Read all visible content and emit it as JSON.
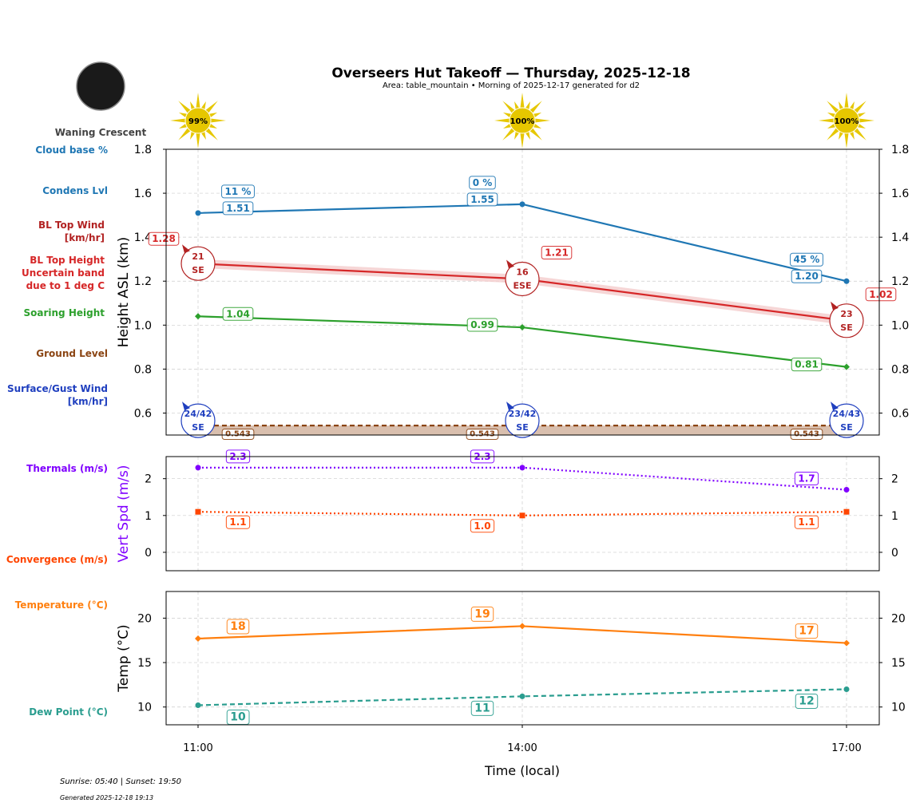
{
  "chart_data": {
    "type": "line",
    "title": "Overseers Hut Takeoff — Thursday, 2025-12-18",
    "subtitle": "Area: table_mountain • Morning of 2025-12-17 generated for d2",
    "moon_phase": "Waning Crescent",
    "x": [
      "11:00",
      "14:00",
      "17:00"
    ],
    "xlabel": "Time (local)",
    "sun_percent": [
      "99%",
      "100%",
      "100%"
    ],
    "grid": true,
    "panels": [
      {
        "ylabel": "Height ASL (km)",
        "ylim": [
          0.5,
          1.8
        ],
        "yticks": [
          "0.6",
          "0.8",
          "1.0",
          "1.2",
          "1.4",
          "1.6",
          "1.8"
        ],
        "series": [
          {
            "name": "Condens Lvl",
            "color": "#1f77b4",
            "values": [
              1.51,
              1.55,
              1.2
            ],
            "labels": [
              "1.51",
              "1.55",
              "1.20"
            ],
            "style": "solid",
            "marker": "circle"
          },
          {
            "name": "BL Top Height",
            "color": "#d62728",
            "values": [
              1.28,
              1.21,
              1.02
            ],
            "labels": [
              "1.28",
              "1.21",
              "1.02"
            ],
            "style": "solid",
            "marker": "none",
            "band": 0.02
          },
          {
            "name": "Soaring Height",
            "color": "#2ca02c",
            "values": [
              1.04,
              0.99,
              0.81
            ],
            "labels": [
              "1.04",
              "0.99",
              "0.81"
            ],
            "style": "solid",
            "marker": "diamond"
          },
          {
            "name": "Ground Level",
            "color": "#8b4513",
            "values": [
              0.543,
              0.543,
              0.543
            ],
            "labels": [
              "0.543",
              "0.543",
              "0.543"
            ],
            "style": "dashed",
            "marker": "none"
          }
        ],
        "cloud_base_pct": [
          "11 %",
          "0 %",
          "45 %"
        ],
        "bl_top_wind": [
          {
            "speed": "21",
            "dir": "SE"
          },
          {
            "speed": "16",
            "dir": "ESE"
          },
          {
            "speed": "23",
            "dir": "SE"
          }
        ],
        "surface_wind": [
          {
            "speed": "24/42",
            "dir": "SE"
          },
          {
            "speed": "23/42",
            "dir": "SE"
          },
          {
            "speed": "24/43",
            "dir": "SE"
          }
        ]
      },
      {
        "ylabel": "Vert Spd (m/s)",
        "ylim": [
          -0.5,
          2.6
        ],
        "yticks": [
          "0",
          "1",
          "2"
        ],
        "series": [
          {
            "name": "Thermals (m/s)",
            "color": "#8000ff",
            "values": [
              2.3,
              2.3,
              1.7
            ],
            "labels": [
              "2.3",
              "2.3",
              "1.7"
            ],
            "style": "dotted",
            "marker": "circle"
          },
          {
            "name": "Convergence (m/s)",
            "color": "#ff4500",
            "values": [
              1.1,
              1.0,
              1.1
            ],
            "labels": [
              "1.1",
              "1.0",
              "1.1"
            ],
            "style": "dotted",
            "marker": "square"
          }
        ]
      },
      {
        "ylabel": "Temp (°C)",
        "ylim": [
          8,
          23
        ],
        "yticks": [
          "10",
          "15",
          "20"
        ],
        "series": [
          {
            "name": "Temperature (°C)",
            "color": "#ff7f0e",
            "values": [
              17.7,
              19.1,
              17.2
            ],
            "labels": [
              "18",
              "19",
              "17"
            ],
            "style": "solid",
            "marker": "diamond"
          },
          {
            "name": "Dew Point (°C)",
            "color": "#2a9d8f",
            "values": [
              10.2,
              11.2,
              12.0
            ],
            "labels": [
              "10",
              "11",
              "12"
            ],
            "style": "dashed",
            "marker": "circle"
          }
        ]
      }
    ]
  },
  "legend_labels": {
    "cloud_base": "Cloud base %",
    "condens": "Condens Lvl",
    "bl_wind_1": "BL Top Wind",
    "bl_wind_2": "[km/hr]",
    "bl_height_1": "BL Top Height",
    "bl_height_2": "Uncertain band",
    "bl_height_3": "due to 1 deg C",
    "soaring": "Soaring Height",
    "ground": "Ground Level",
    "surface_1": "Surface/Gust Wind",
    "surface_2": "[km/hr]",
    "thermals": "Thermals (m/s)",
    "convergence": "Convergence (m/s)",
    "temperature": "Temperature (°C)",
    "dewpoint": "Dew Point (°C)"
  },
  "footer": {
    "sun": "Sunrise: 05:40 | Sunset: 19:50",
    "generated": "Generated 2025-12-18 19:13"
  },
  "colors": {
    "moon": "#1a1a1a",
    "sun": "#e6c700",
    "band": "#f4cccc",
    "ground_fill": "#d9bfae"
  }
}
